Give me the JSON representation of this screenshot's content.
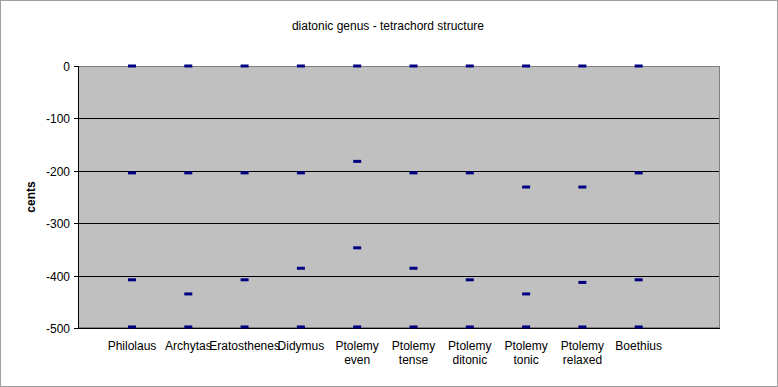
{
  "chart_data": {
    "type": "scatter",
    "title": "diatonic genus - tetrachord structure",
    "y_label": "cents",
    "categories": [
      "Philolaus",
      "Archytas",
      "Eratosthenes",
      "Didymus",
      "Ptolemy even",
      "Ptolemy tense",
      "Ptolemy ditonic",
      "Ptolemy tonic",
      "Ptolemy relaxed",
      "Boethius"
    ],
    "series": [
      {
        "color": "#000080",
        "marker": "dash",
        "values": [
          0,
          0,
          0,
          0,
          0,
          0,
          0,
          0,
          0,
          0
        ]
      },
      {
        "color": "#000080",
        "marker": "dash",
        "values": [
          -204,
          -204,
          -204,
          -204,
          -182,
          -204,
          -204,
          -231,
          -231,
          -204
        ]
      },
      {
        "color": "#000080",
        "marker": "dash",
        "values": [
          -408,
          -435,
          -408,
          -386,
          -347,
          -386,
          -408,
          -435,
          -413,
          -408
        ]
      },
      {
        "color": "#000080",
        "marker": "dash",
        "values": [
          -498,
          -498,
          -498,
          -498,
          -498,
          -498,
          -498,
          -498,
          -498,
          -498
        ]
      }
    ],
    "ylim": [
      -500,
      0
    ],
    "yticks": [
      -500,
      -400,
      -300,
      -200,
      -100,
      0
    ],
    "grid": true
  }
}
